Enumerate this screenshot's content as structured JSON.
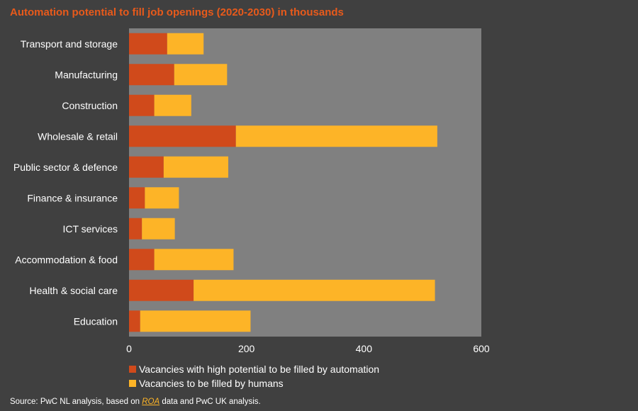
{
  "colors": {
    "automation": "#d04a1b",
    "humans": "#fdb427",
    "title": "#e85a1b",
    "plot_bg": "#808080",
    "page_bg": "#404040",
    "link": "#fdb427"
  },
  "chart_data": {
    "type": "bar",
    "orientation": "horizontal",
    "stacked": true,
    "title": "Automation potential to fill job openings (2020-2030) in thousands",
    "xlabel": "",
    "ylabel": "",
    "xlim": [
      0,
      600
    ],
    "x_ticks": [
      0,
      200,
      400,
      600
    ],
    "grid": false,
    "legend_position": "bottom-left",
    "categories": [
      "Transport and storage",
      "Manufacturing",
      "Construction",
      "Wholesale & retail",
      "Public sector & defence",
      "Finance & insurance",
      "ICT services",
      "Accommodation & food",
      "Health & social care",
      "Education"
    ],
    "series": [
      {
        "name": "Vacancies with high potential to be filled by automation",
        "color": "#d04a1b",
        "values": [
          65,
          77,
          43,
          182,
          59,
          27,
          22,
          43,
          110,
          19
        ]
      },
      {
        "name": "Vacancies to be filled by humans",
        "color": "#fdb427",
        "values": [
          62,
          90,
          63,
          343,
          110,
          58,
          56,
          135,
          411,
          188
        ]
      }
    ]
  },
  "source": {
    "prefix": "Source: PwC NL analysis, based on ",
    "link_text": "ROA",
    "suffix": " data and PwC UK analysis."
  }
}
